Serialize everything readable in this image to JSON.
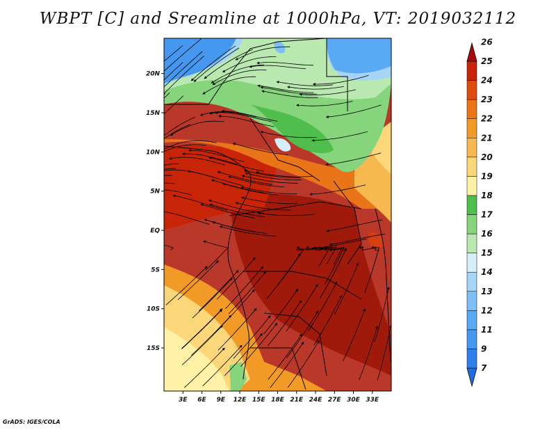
{
  "title": "WBPT [C] and Sreamline at 1000hPa, VT: 2019032112",
  "credit": "GrADS: IGES/COLA",
  "map": {
    "lon_range": [
      0,
      36
    ],
    "lat_range": [
      -20.5,
      24.5
    ],
    "lat_labels": [
      {
        "lat": 20,
        "text": "20N"
      },
      {
        "lat": 15,
        "text": "15N"
      },
      {
        "lat": 10,
        "text": "10N"
      },
      {
        "lat": 5,
        "text": "5N"
      },
      {
        "lat": 0,
        "text": "EQ"
      },
      {
        "lat": -5,
        "text": "5S"
      },
      {
        "lat": -10,
        "text": "10S"
      },
      {
        "lat": -15,
        "text": "15S"
      }
    ],
    "lon_labels": [
      {
        "lon": 3,
        "text": "3E"
      },
      {
        "lon": 6,
        "text": "6E"
      },
      {
        "lon": 9,
        "text": "9E"
      },
      {
        "lon": 12,
        "text": "12E"
      },
      {
        "lon": 15,
        "text": "15E"
      },
      {
        "lon": 18,
        "text": "18E"
      },
      {
        "lon": 21,
        "text": "21E"
      },
      {
        "lon": 24,
        "text": "24E"
      },
      {
        "lon": 27,
        "text": "27E"
      },
      {
        "lon": 30,
        "text": "30E"
      },
      {
        "lon": 33,
        "text": "33E"
      }
    ]
  },
  "colorbar": {
    "boundaries": [
      "7",
      "9",
      "11",
      "12",
      "13",
      "14",
      "15",
      "16",
      "17",
      "18",
      "19",
      "20",
      "21",
      "22",
      "23",
      "24",
      "25",
      "26"
    ],
    "colors": [
      "#1e6ee0",
      "#2f80ea",
      "#4597f0",
      "#5aa9f5",
      "#7ebff7",
      "#a6d4f7",
      "#d6eef9",
      "#b9e8b0",
      "#86d47c",
      "#50be4c",
      "#fff2a6",
      "#fbd77a",
      "#f8b850",
      "#f29a26",
      "#ea7418",
      "#df4a10",
      "#c82508",
      "#a80a0a"
    ]
  }
}
